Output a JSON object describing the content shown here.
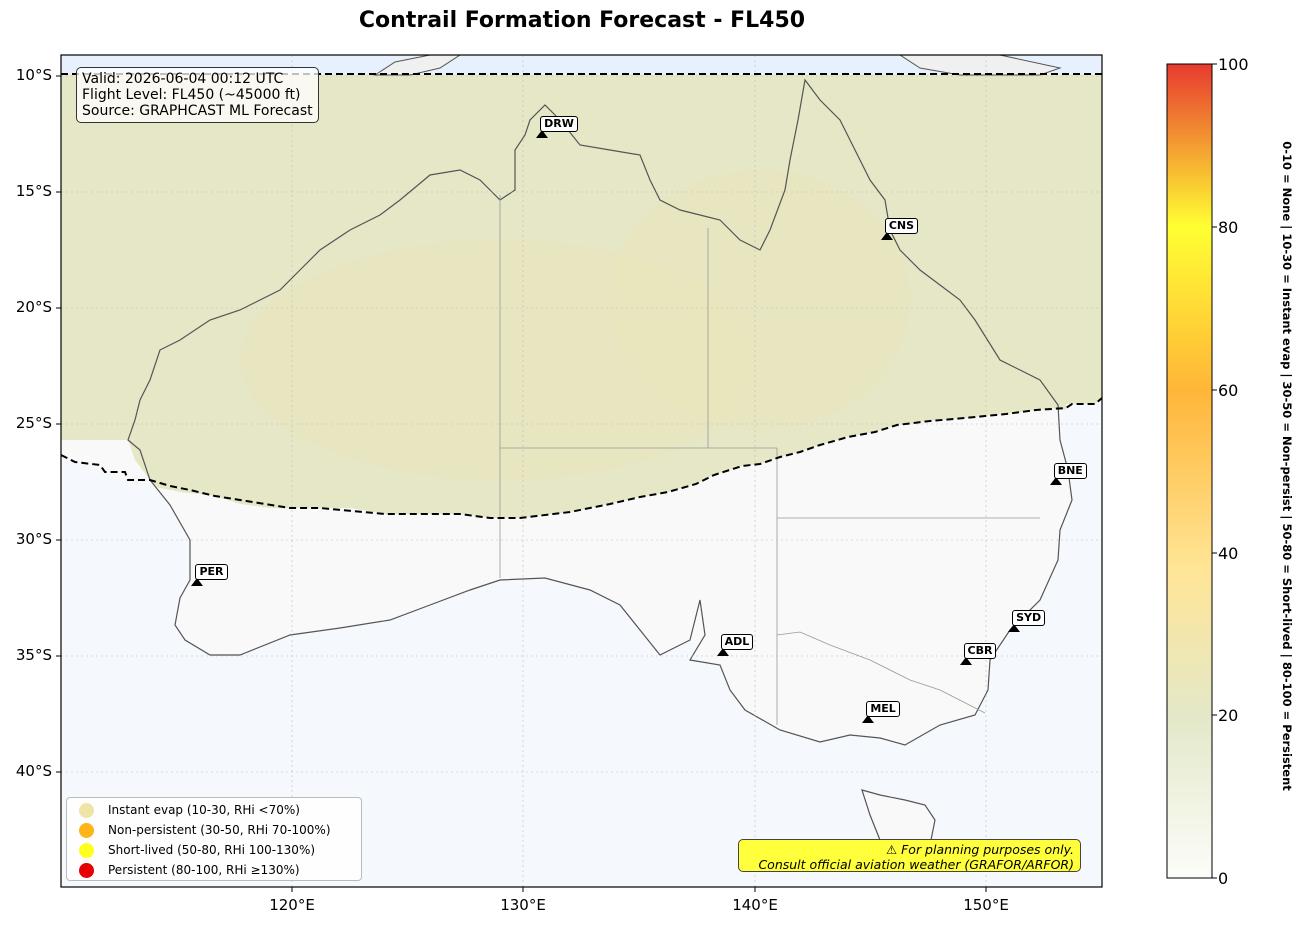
{
  "title": "Contrail Formation Forecast - FL450",
  "info": {
    "valid": "Valid: 2026-06-04 00:12 UTC",
    "flight_level": "Flight Level: FL450 (~45000 ft)",
    "source": "Source: GRAPHCAST ML Forecast"
  },
  "axes": {
    "lat_ticks": [
      "10°S",
      "15°S",
      "20°S",
      "25°S",
      "30°S",
      "35°S",
      "40°S"
    ],
    "lon_ticks": [
      "120°E",
      "130°E",
      "140°E",
      "150°E"
    ],
    "lon_range": [
      110,
      155
    ],
    "lat_range": [
      -9,
      -45
    ]
  },
  "cities": [
    {
      "code": "DRW",
      "lon": 130.8,
      "lat": -12.5
    },
    {
      "code": "CNS",
      "lon": 145.7,
      "lat": -16.9
    },
    {
      "code": "BNE",
      "lon": 153.0,
      "lat": -27.5
    },
    {
      "code": "PER",
      "lon": 115.9,
      "lat": -31.9
    },
    {
      "code": "ADL",
      "lon": 138.6,
      "lat": -34.9
    },
    {
      "code": "SYD",
      "lon": 151.2,
      "lat": -33.9
    },
    {
      "code": "CBR",
      "lon": 149.1,
      "lat": -35.3
    },
    {
      "code": "MEL",
      "lon": 144.9,
      "lat": -37.8
    }
  ],
  "legend": [
    {
      "label": "Instant evap (10-30, RHi <70%)",
      "color": "#efe3a6"
    },
    {
      "label": "Non-persistent (30-50, RHi 70-100%)",
      "color": "#fdb517"
    },
    {
      "label": "Short-lived (50-80, RHi 100-130%)",
      "color": "#ffff1e"
    },
    {
      "label": "Persistent (80-100, RHi ≥130%)",
      "color": "#e60000"
    }
  ],
  "disclaimer": {
    "line1": "⚠ For planning purposes only.",
    "line2": "Consult official aviation weather (GRAFOR/ARFOR)"
  },
  "colorbar": {
    "ticks": [
      "0",
      "20",
      "40",
      "60",
      "80",
      "100"
    ],
    "label": "0-10 = None  |  10-30 = Instant evap  |  30-50 = Non-persist  |  50-80 = Short-lived  |  80-100 = Persistent",
    "colors": [
      "#fbfdf9",
      "#e4e8c8",
      "#ffe596",
      "#ffb638",
      "#ffff33",
      "#e83a30"
    ]
  }
}
